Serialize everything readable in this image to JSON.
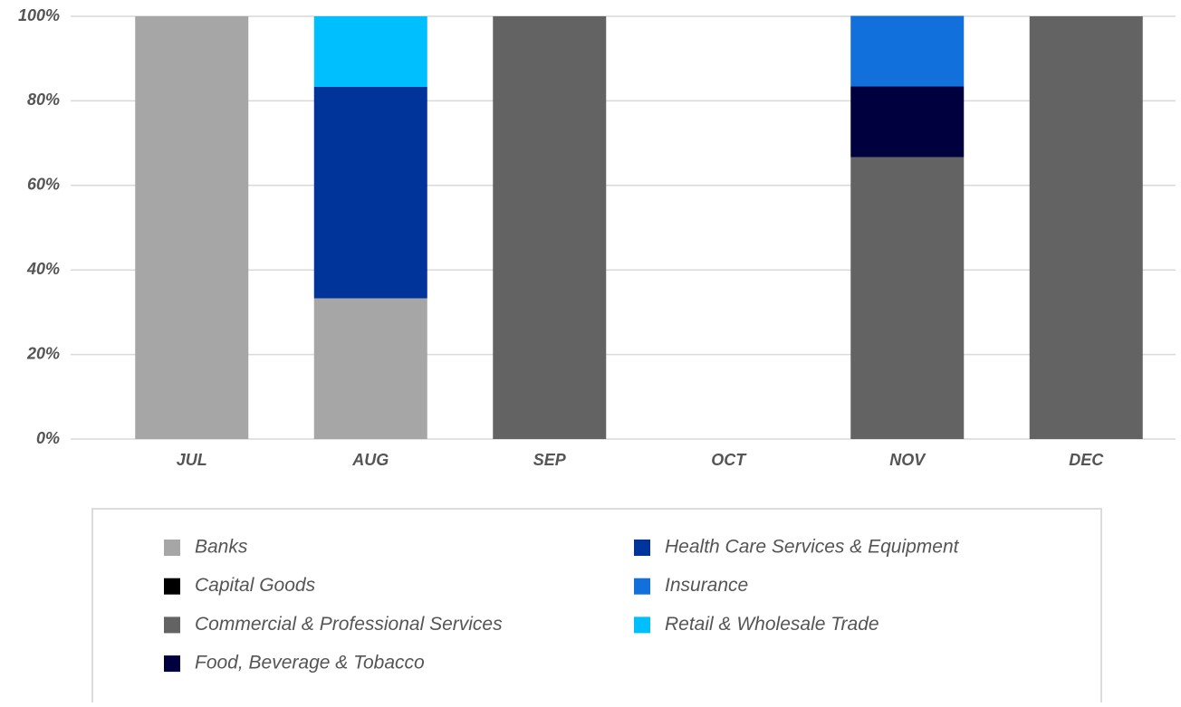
{
  "chart_data": {
    "type": "stacked_bar",
    "categories": [
      "JUL",
      "AUG",
      "SEP",
      "OCT",
      "NOV",
      "DEC"
    ],
    "series": [
      {
        "name": "Banks",
        "color": "#a6a6a6",
        "values": [
          100,
          33.3,
          null,
          null,
          null,
          null
        ]
      },
      {
        "name": "Capital Goods",
        "color": "#000000",
        "values": [
          null,
          null,
          null,
          null,
          null,
          null
        ]
      },
      {
        "name": "Commercial & Professional Services",
        "color": "#636363",
        "values": [
          null,
          null,
          100,
          null,
          66.7,
          100
        ]
      },
      {
        "name": "Food, Beverage & Tobacco",
        "color": "#00003f",
        "values": [
          null,
          null,
          null,
          null,
          16.7,
          null
        ]
      },
      {
        "name": "Health Care Services & Equipment",
        "color": "#00349a",
        "values": [
          null,
          50,
          null,
          null,
          null,
          null
        ]
      },
      {
        "name": "Insurance",
        "color": "#1170dc",
        "values": [
          null,
          null,
          null,
          null,
          16.7,
          null
        ]
      },
      {
        "name": "Retail & Wholesale Trade",
        "color": "#00bfff",
        "values": [
          null,
          16.7,
          null,
          null,
          null,
          null
        ]
      }
    ],
    "ylim": [
      0,
      100
    ],
    "yticks": [
      {
        "value": 0,
        "label": "0%"
      },
      {
        "value": 20,
        "label": "20%"
      },
      {
        "value": 40,
        "label": "40%"
      },
      {
        "value": 60,
        "label": "60%"
      },
      {
        "value": 80,
        "label": "80%"
      },
      {
        "value": 100,
        "label": "100%"
      }
    ],
    "grid": true
  }
}
